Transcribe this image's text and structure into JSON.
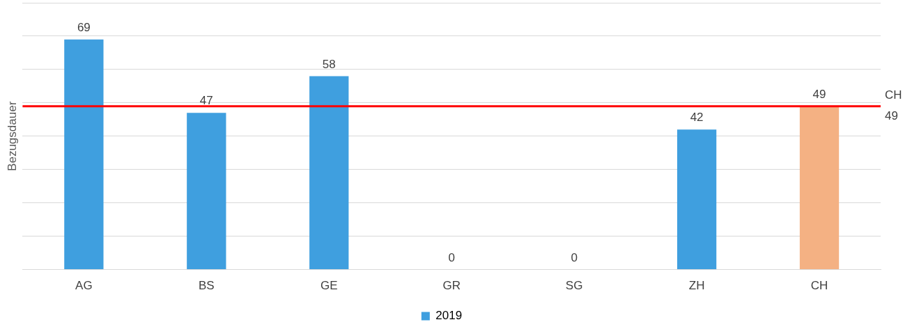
{
  "chart_data": {
    "type": "bar",
    "ylabel": "Bezugsdauer",
    "categories": [
      "AG",
      "BS",
      "GE",
      "GR",
      "SG",
      "ZH",
      "CH"
    ],
    "series": [
      {
        "name": "2019",
        "color": "#3f9fdf",
        "colors": [
          "#3f9fdf",
          "#3f9fdf",
          "#3f9fdf",
          "#3f9fdf",
          "#3f9fdf",
          "#3f9fdf",
          "#f4b183"
        ],
        "values": [
          69,
          47,
          58,
          0,
          0,
          42,
          49
        ]
      }
    ],
    "ylim": [
      0,
      80
    ],
    "yticks": [
      {
        "value": 0,
        "label": null
      },
      {
        "value": 10,
        "label": null
      },
      {
        "value": 20,
        "label": null
      },
      {
        "value": 30,
        "label": null
      },
      {
        "value": 40,
        "label": null
      },
      {
        "value": 50,
        "label": null
      },
      {
        "value": 60,
        "label": null
      },
      {
        "value": 70,
        "label": null
      },
      {
        "value": 80,
        "label": null
      }
    ],
    "tick_labels": "x",
    "grid": "y",
    "legend": "bottom",
    "data_labels": true,
    "ref_lines": [
      {
        "axis": "y",
        "value": 49,
        "label": "CH\n49",
        "color": "#ff0000"
      }
    ]
  }
}
